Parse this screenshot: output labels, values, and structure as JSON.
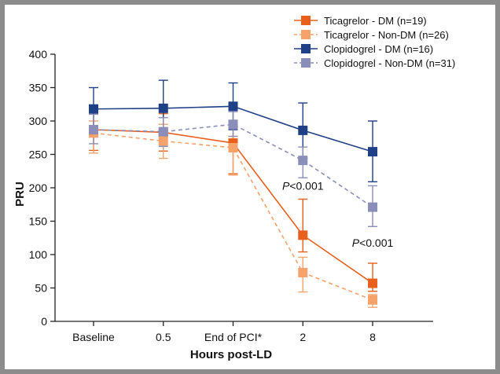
{
  "chart_data": {
    "type": "line",
    "xlabel": "Hours post-LD",
    "ylabel": "PRU",
    "categories": [
      "Baseline",
      "0.5",
      "End of PCI*",
      "2",
      "8"
    ],
    "ylim": [
      0,
      400
    ],
    "yticks": [
      0,
      50,
      100,
      150,
      200,
      250,
      300,
      350,
      400
    ],
    "grid": false,
    "legend_position": "top-right",
    "error_bars": true,
    "series": [
      {
        "name": "Ticagrelor - DM (n=19)",
        "color": "#e8601c",
        "line_style": "solid",
        "values": [
          287,
          283,
          267,
          129,
          57
        ],
        "error_upper": [
          318,
          311,
          290,
          183,
          87
        ],
        "error_lower": [
          256,
          255,
          221,
          104,
          45
        ]
      },
      {
        "name": "Ticagrelor - Non-DM (n=26)",
        "color": "#f5a26b",
        "line_style": "dashed",
        "values": [
          282,
          270,
          260,
          73,
          32
        ],
        "error_upper": [
          300,
          295,
          277,
          96,
          40
        ],
        "error_lower": [
          252,
          244,
          219,
          44,
          21
        ]
      },
      {
        "name": "Clopidogrel - DM (n=16)",
        "color": "#1f3f86",
        "line_style": "solid",
        "values": [
          318,
          319,
          322,
          286,
          254
        ],
        "error_upper": [
          350,
          361,
          357,
          327,
          300
        ],
        "error_lower": [
          288,
          278,
          287,
          244,
          209
        ]
      },
      {
        "name": "Clopidogrel - Non-DM (n=31)",
        "color": "#8a8eb8",
        "line_style": "dashed",
        "values": [
          287,
          284,
          295,
          241,
          171
        ],
        "error_upper": [
          310,
          305,
          314,
          261,
          203
        ],
        "error_lower": [
          266,
          262,
          277,
          215,
          142
        ]
      }
    ],
    "annotations": [
      {
        "text_prefix": "P",
        "text_suffix": "<0.001",
        "x": "2",
        "y": 197
      },
      {
        "text_prefix": "P",
        "text_suffix": "<0.001",
        "x": "8",
        "y": 112
      }
    ]
  }
}
